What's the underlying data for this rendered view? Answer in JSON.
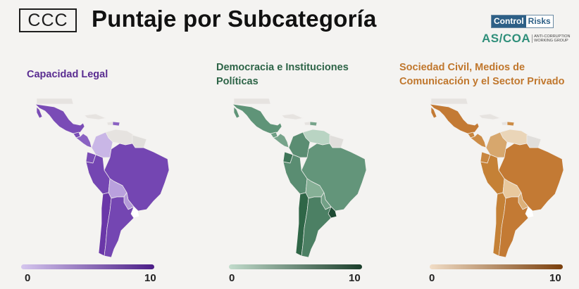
{
  "header": {
    "badge": "CCC",
    "title": "Puntaje por Subcategoría"
  },
  "logos": {
    "control": "Control",
    "risks": "Risks",
    "ascoa": "AS/COA",
    "ascoa_sub": "ANTI-CORRUPTION WORKING GROUP"
  },
  "maps": [
    {
      "title": "Capacidad Legal",
      "legend_min": "0",
      "legend_max": "10",
      "colors": {
        "mexico": "#7a4cb6",
        "guatemala": "#7a4cb6",
        "central": "#8a62c2",
        "nodata": "#e6e3e0",
        "colombia": "#c9b6e6",
        "venezuela": "#e6e3e0",
        "guyanas": "#e0dedb",
        "ecuador": "#7a4cb6",
        "peru": "#7446b2",
        "brazil": "#7446b2",
        "bolivia": "#b9a0dd",
        "paraguay": "#b49ad8",
        "chile": "#6a37a8",
        "argentina": "#7446b2",
        "uruguay": "#ffffff",
        "dominican": "#8a62c2"
      }
    },
    {
      "title": "Democracia e Instituciones Políticas",
      "legend_min": "0",
      "legend_max": "10",
      "colors": {
        "mexico": "#5f9478",
        "guatemala": "#6f9f85",
        "central": "#77a48b",
        "nodata": "#e6e3e0",
        "colombia": "#5a8d72",
        "venezuela": "#b9d4c3",
        "guyanas": "#e0dedb",
        "ecuador": "#3e7558",
        "peru": "#5a8d72",
        "brazil": "#63957a",
        "bolivia": "#86b096",
        "paraguay": "#72a086",
        "chile": "#2f6647",
        "argentina": "#4c8064",
        "uruguay": "#1e4a33",
        "dominican": "#77a48b"
      }
    },
    {
      "title": "Sociedad Civil, Medios de Comunicación y el Sector Privado",
      "legend_min": "0",
      "legend_max": "10",
      "colors": {
        "mexico": "#c37a34",
        "guatemala": "#c98740",
        "central": "#cc8c46",
        "nodata": "#e6e3e0",
        "colombia": "#d7a76d",
        "venezuela": "#ead5b8",
        "guyanas": "#e0dedb",
        "ecuador": "#c98740",
        "peru": "#c58136",
        "brazil": "#c37a34",
        "bolivia": "#e8c89d",
        "paraguay": "#dcb079",
        "chile": "#c58136",
        "argentina": "#c37a34",
        "uruguay": "#ffffff",
        "dominican": "#cc8c46"
      }
    }
  ]
}
